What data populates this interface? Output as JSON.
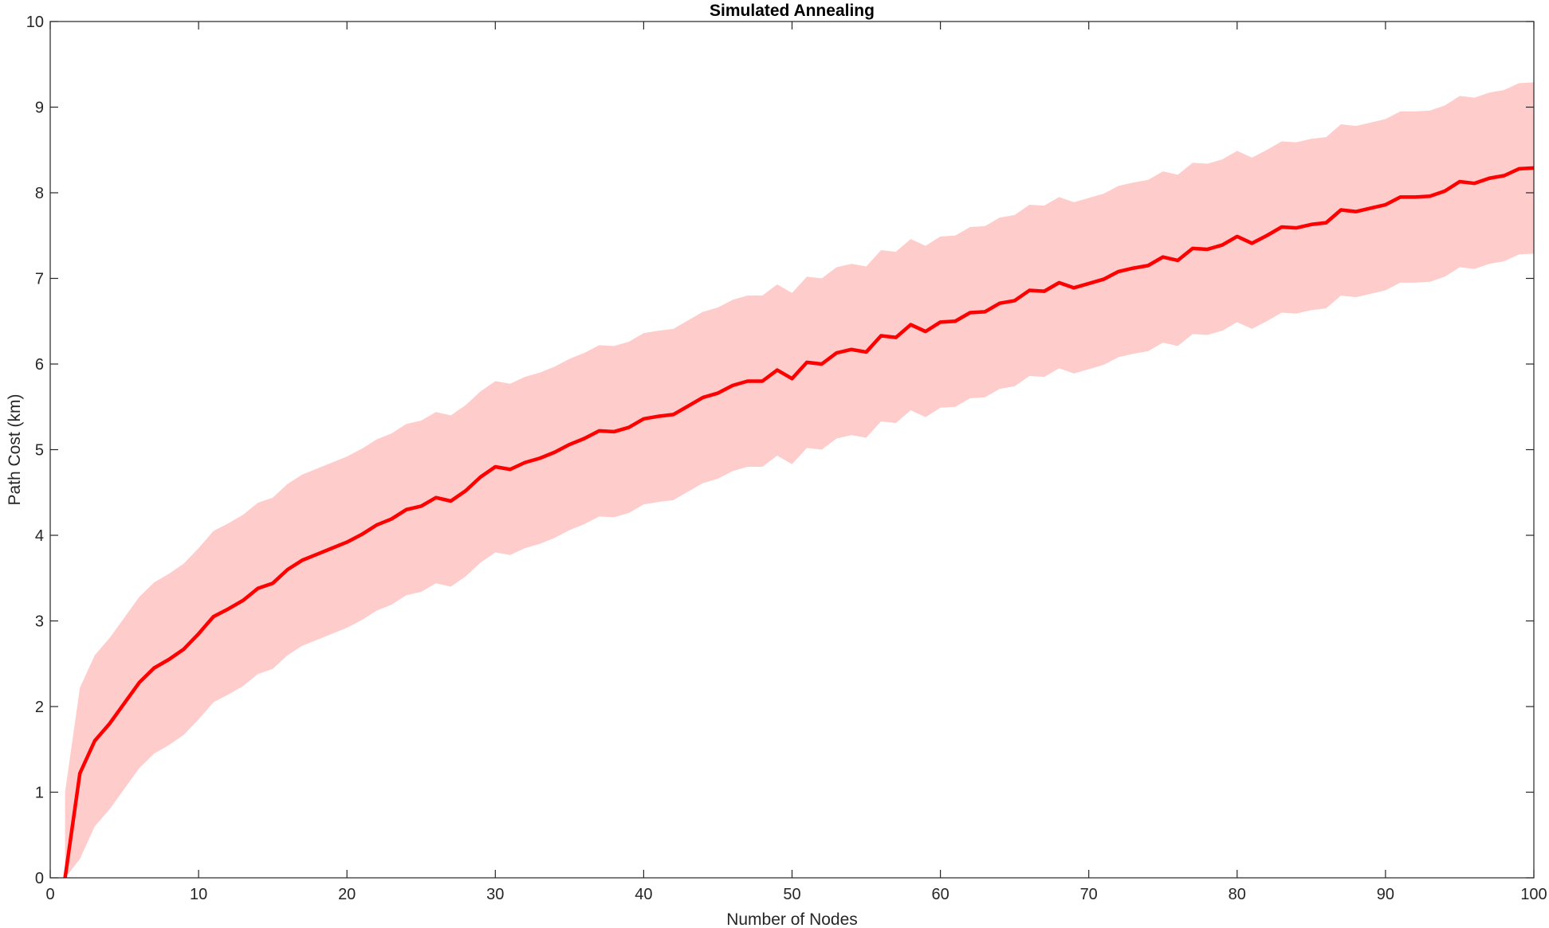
{
  "chart_data": {
    "type": "line",
    "title": "Simulated Annealing",
    "xlabel": "Number of Nodes",
    "ylabel": "Path Cost (km)",
    "xlim": [
      0,
      100
    ],
    "ylim": [
      0,
      10
    ],
    "xticks": [
      "0",
      "10",
      "20",
      "30",
      "40",
      "50",
      "60",
      "70",
      "80",
      "90",
      "100"
    ],
    "yticks": [
      "0",
      "1",
      "2",
      "3",
      "4",
      "5",
      "6",
      "7",
      "8",
      "9",
      "10"
    ],
    "grid": false,
    "band_width": 1.0,
    "colors": {
      "line": "#ff0000",
      "band": "#ffcccc",
      "axes": "#262626"
    },
    "series": [
      {
        "x": [
          1,
          2,
          3,
          4,
          5,
          6,
          7,
          8,
          9,
          10,
          11,
          12,
          13,
          14,
          15,
          16,
          17,
          18,
          19,
          20,
          21,
          22,
          23,
          24,
          25,
          26,
          27,
          28,
          29,
          30,
          31,
          32,
          33,
          34,
          35,
          36,
          37,
          38,
          39,
          40,
          41,
          42,
          43,
          44,
          45,
          46,
          47,
          48,
          49,
          50,
          51,
          52,
          53,
          54,
          55,
          56,
          57,
          58,
          59,
          60,
          61,
          62,
          63,
          64,
          65,
          66,
          67,
          68,
          69,
          70,
          71,
          72,
          73,
          74,
          75,
          76,
          77,
          78,
          79,
          80,
          81,
          82,
          83,
          84,
          85,
          86,
          87,
          88,
          89,
          90,
          91,
          92,
          93,
          94,
          95,
          96,
          97,
          98,
          99,
          100
        ],
        "y": [
          0,
          1.22,
          1.6,
          1.8,
          2.04,
          2.28,
          2.45,
          2.55,
          2.67,
          2.85,
          3.05,
          3.14,
          3.24,
          3.38,
          3.44,
          3.6,
          3.71,
          3.78,
          3.85,
          3.92,
          4.01,
          4.12,
          4.19,
          4.3,
          4.34,
          4.44,
          4.4,
          4.52,
          4.68,
          4.8,
          4.77,
          4.85,
          4.9,
          4.97,
          5.06,
          5.13,
          5.22,
          5.21,
          5.26,
          5.36,
          5.39,
          5.41,
          5.51,
          5.61,
          5.66,
          5.75,
          5.8,
          5.8,
          5.93,
          5.83,
          6.02,
          6,
          6.13,
          6.17,
          6.14,
          6.33,
          6.31,
          6.46,
          6.38,
          6.49,
          6.5,
          6.6,
          6.61,
          6.71,
          6.74,
          6.86,
          6.85,
          6.95,
          6.89,
          6.94,
          6.99,
          7.08,
          7.12,
          7.15,
          7.25,
          7.21,
          7.35,
          7.34,
          7.39,
          7.49,
          7.41,
          7.5,
          7.6,
          7.59,
          7.63,
          7.65,
          7.8,
          7.78,
          7.82,
          7.86,
          7.95,
          7.95,
          7.96,
          8.02,
          8.13,
          8.11,
          8.17,
          8.2,
          8.28,
          8.29
        ]
      }
    ]
  }
}
